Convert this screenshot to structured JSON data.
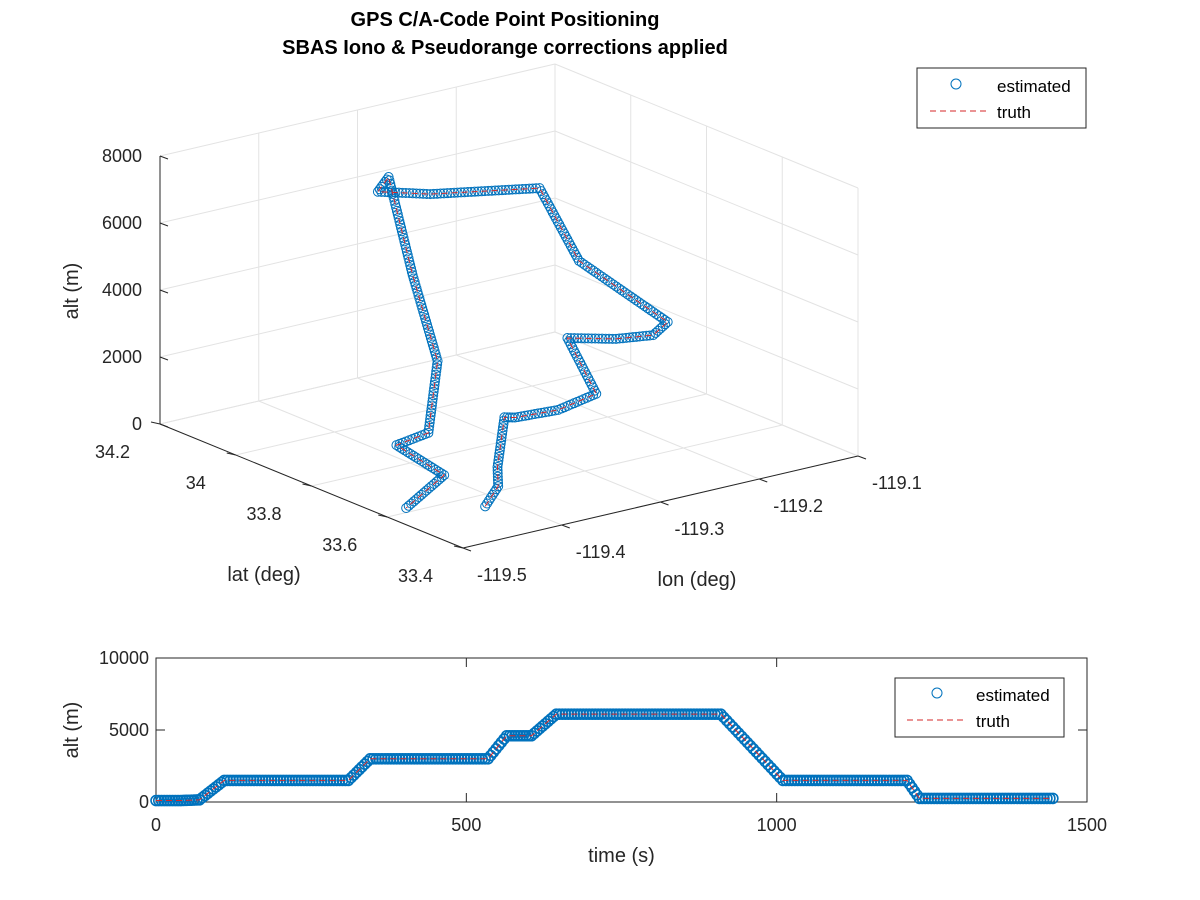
{
  "chart_data": [
    {
      "type": "scatter3d",
      "title": [
        "GPS C/A-Code Point Positioning",
        "SBAS Iono & Pseudorange corrections applied"
      ],
      "xlabel": "lon (deg)",
      "ylabel": "lat (deg)",
      "zlabel": "alt (m)",
      "xlim": [
        -119.5,
        -119.1
      ],
      "ylim": [
        33.4,
        34.2
      ],
      "zlim": [
        0,
        8000
      ],
      "x_ticks": [
        "-119.5",
        "-119.4",
        "-119.3",
        "-119.2",
        "-119.1"
      ],
      "y_ticks": [
        "33.4",
        "33.6",
        "33.8",
        "34",
        "34.2"
      ],
      "z_ticks": [
        "0",
        "2000",
        "4000",
        "6000",
        "8000"
      ],
      "grid": true,
      "legend_position": "top-right",
      "series": [
        {
          "name": "estimated",
          "marker": "circle",
          "color": "#0072bd"
        },
        {
          "name": "truth",
          "line": "dashed",
          "color": "#d62728"
        }
      ],
      "track": [
        {
          "lon": -119.42,
          "lat": 33.55,
          "alt": 0
        },
        {
          "lon": -119.38,
          "lat": 33.62,
          "alt": 0
        },
        {
          "lon": -119.35,
          "lat": 33.7,
          "alt": 0
        },
        {
          "lon": -119.32,
          "lat": 33.76,
          "alt": 1000
        },
        {
          "lon": -119.34,
          "lat": 33.68,
          "alt": 1500
        },
        {
          "lon": -119.3,
          "lat": 33.67,
          "alt": 1500
        },
        {
          "lon": -119.25,
          "lat": 33.7,
          "alt": 1500
        },
        {
          "lon": -119.26,
          "lat": 33.75,
          "alt": 3000
        },
        {
          "lon": -119.23,
          "lat": 33.7,
          "alt": 3000
        },
        {
          "lon": -119.2,
          "lat": 33.68,
          "alt": 3000
        },
        {
          "lon": -119.17,
          "lat": 33.72,
          "alt": 3000
        },
        {
          "lon": -119.21,
          "lat": 33.85,
          "alt": 4500
        },
        {
          "lon": -119.2,
          "lat": 33.98,
          "alt": 6000
        },
        {
          "lon": -119.28,
          "lat": 34.06,
          "alt": 6000
        },
        {
          "lon": -119.31,
          "lat": 34.12,
          "alt": 6000
        },
        {
          "lon": -119.28,
          "lat": 34.17,
          "alt": 6000
        },
        {
          "lon": -119.34,
          "lat": 33.95,
          "alt": 4500
        },
        {
          "lon": -119.38,
          "lat": 33.78,
          "alt": 3000
        },
        {
          "lon": -119.42,
          "lat": 33.7,
          "alt": 1500
        },
        {
          "lon": -119.46,
          "lat": 33.68,
          "alt": 1500
        },
        {
          "lon": -119.45,
          "lat": 33.58,
          "alt": 1000
        },
        {
          "lon": -119.5,
          "lat": 33.55,
          "alt": 500
        }
      ]
    },
    {
      "type": "line",
      "xlabel": "time (s)",
      "ylabel": "alt (m)",
      "xlim": [
        0,
        1500
      ],
      "ylim": [
        0,
        10000
      ],
      "x_ticks": [
        "0",
        "500",
        "1000",
        "1500"
      ],
      "y_ticks": [
        "0",
        "5000",
        "10000"
      ],
      "grid": false,
      "legend_position": "top-right",
      "series": [
        {
          "name": "estimated",
          "marker": "circle",
          "color": "#0072bd"
        },
        {
          "name": "truth",
          "line": "dashed",
          "color": "#d62728"
        }
      ],
      "x": [
        0,
        40,
        70,
        110,
        310,
        345,
        535,
        565,
        605,
        645,
        910,
        1010,
        1210,
        1230,
        1445
      ],
      "y": [
        100,
        100,
        150,
        1500,
        1500,
        3000,
        3000,
        4600,
        4600,
        6100,
        6100,
        1500,
        1500,
        250,
        250
      ]
    }
  ]
}
